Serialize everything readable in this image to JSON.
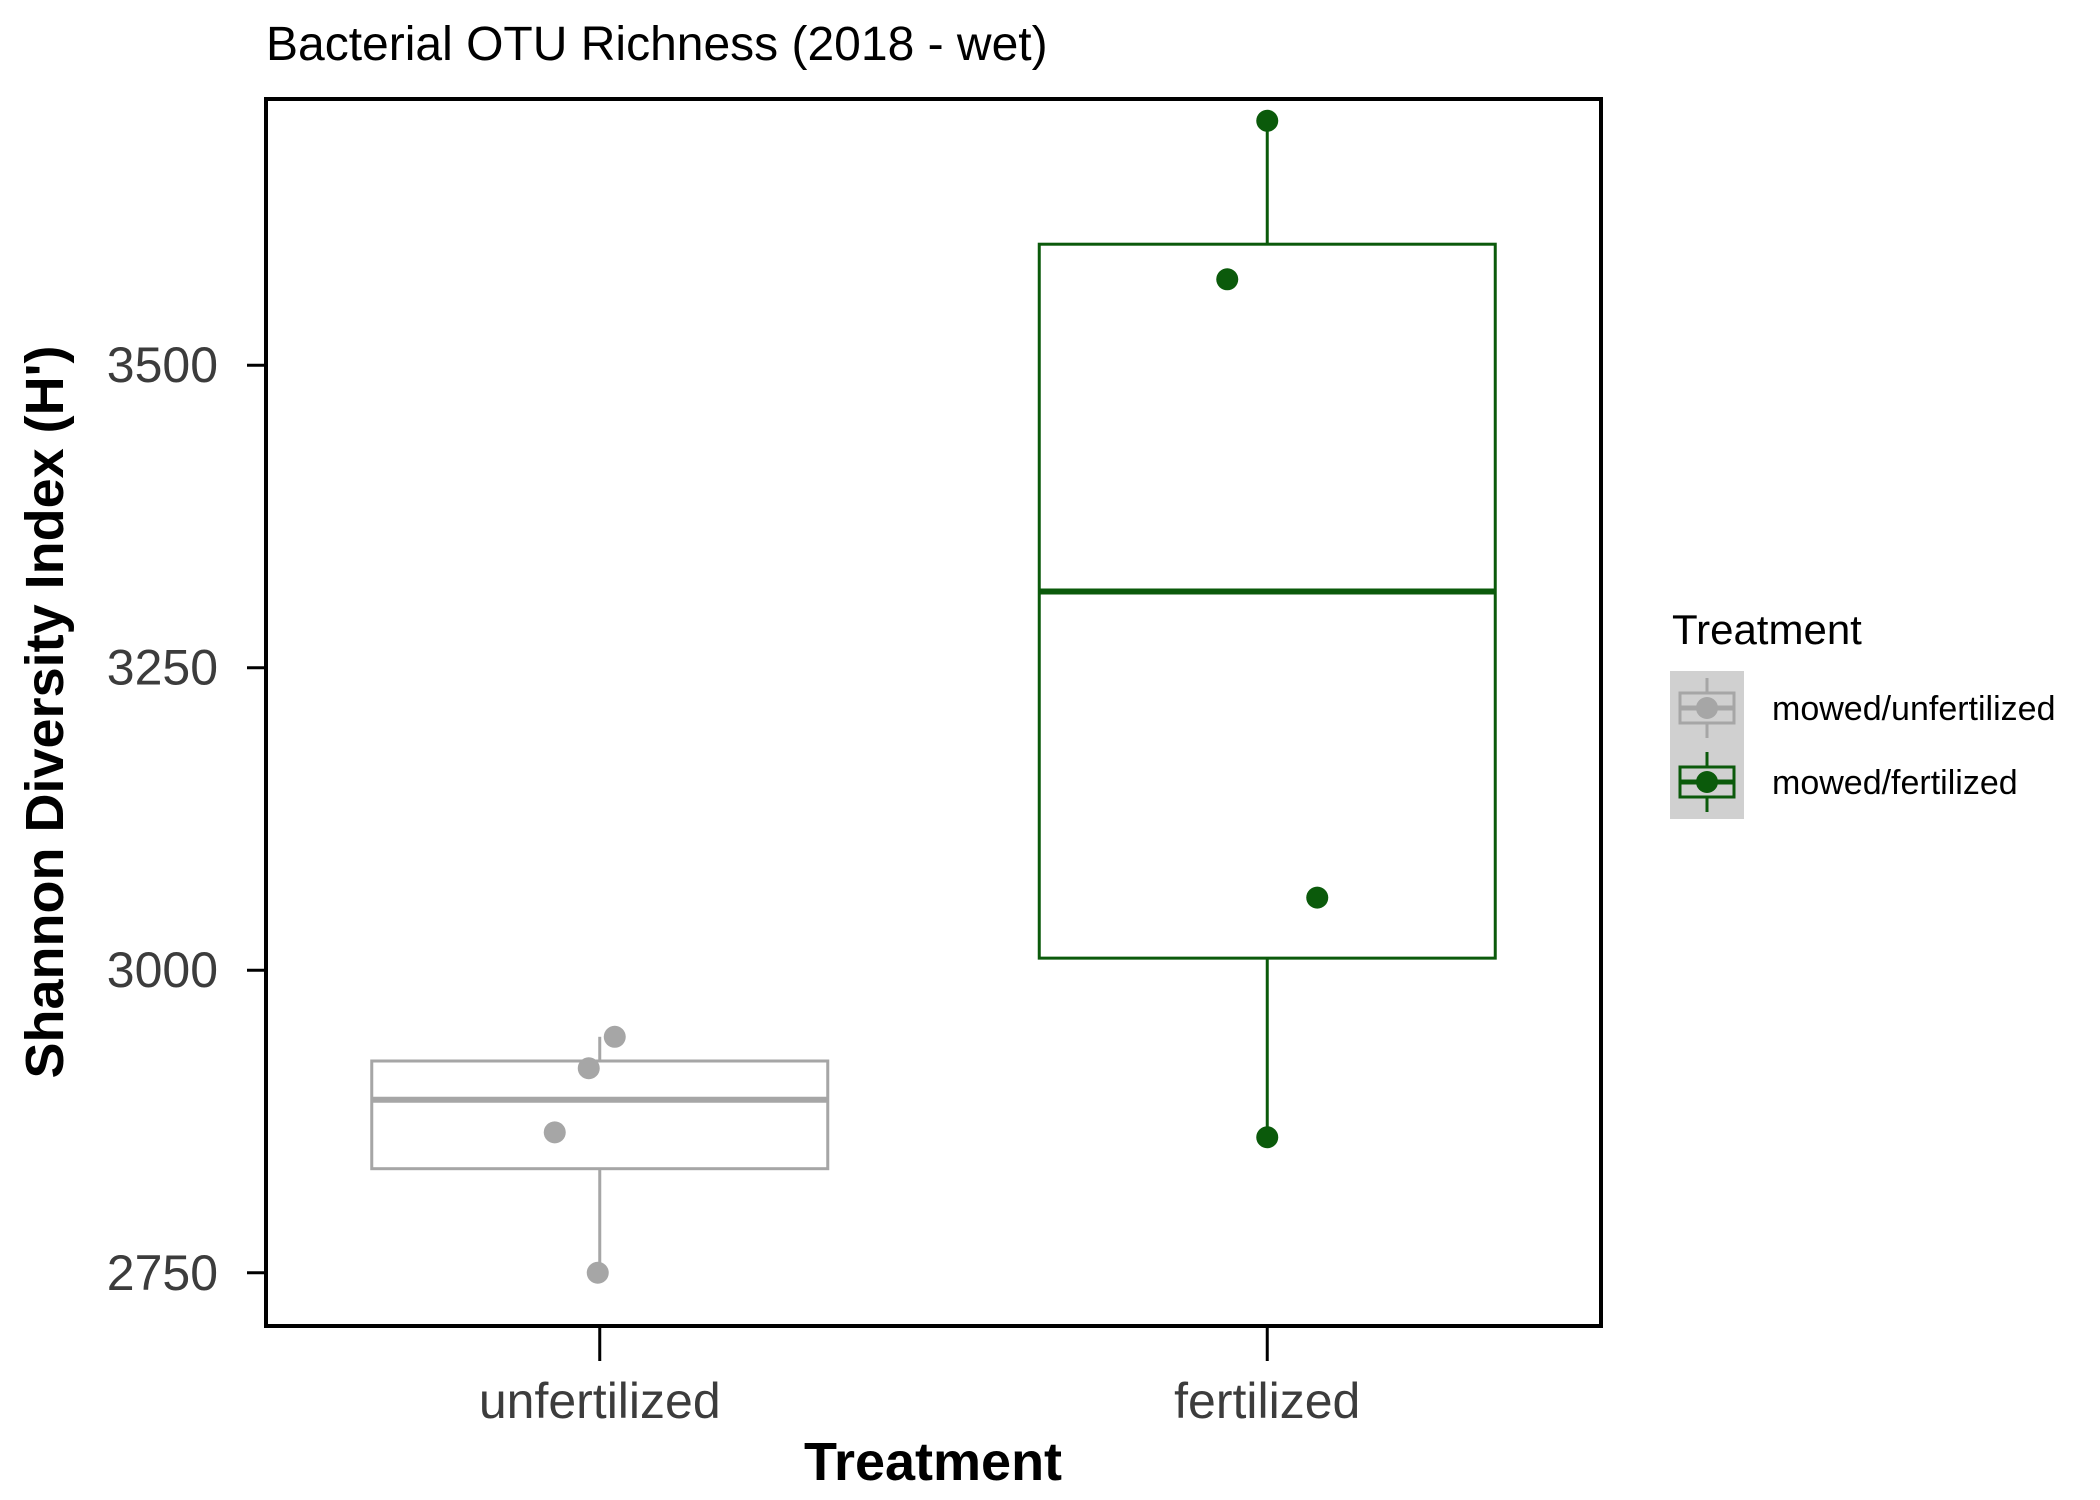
{
  "chart_data": {
    "type": "box",
    "title": "Bacterial OTU Richness (2018 - wet)",
    "xlabel": "Treatment",
    "ylabel": "Shannon Diversity Index (H')",
    "categories": [
      "unfertilized",
      "fertilized"
    ],
    "yticks": [
      2750,
      3000,
      3250,
      3500
    ],
    "ylim": [
      2706,
      3720
    ],
    "grid": false,
    "legend": {
      "title": "Treatment",
      "placement": "right",
      "entries": [
        "mowed/unfertilized",
        "mowed/fertilized"
      ]
    },
    "series": [
      {
        "name": "mowed/unfertilized",
        "category": "unfertilized",
        "color": "#a6a6a6",
        "box": {
          "whisker_low": 2750,
          "q1": 2836,
          "median": 2893,
          "q3": 2925,
          "whisker_high": 2945
        },
        "points": [
          2945,
          2919,
          2866,
          2750
        ]
      },
      {
        "name": "mowed/fertilized",
        "category": "fertilized",
        "color": "#0b5a0b",
        "box": {
          "whisker_low": 2866,
          "q1": 3010,
          "median": 3313,
          "q3": 3600,
          "whisker_high": 3700
        },
        "points": [
          3702,
          3571,
          3060,
          2862
        ]
      }
    ]
  }
}
